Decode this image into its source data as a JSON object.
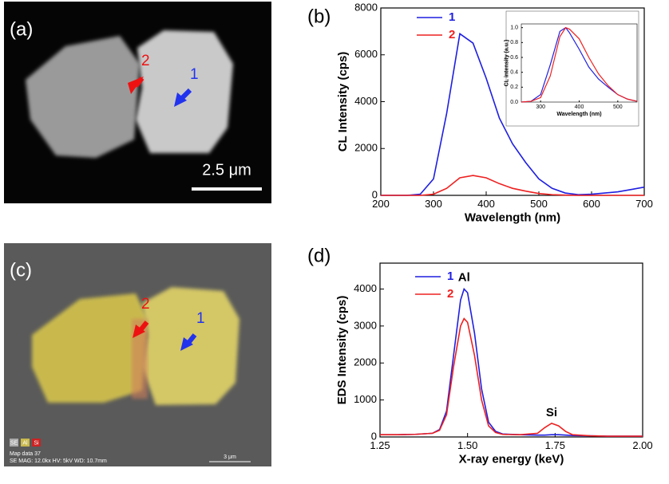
{
  "panels": [
    {
      "label": "(a)",
      "markers": [
        "2",
        "1"
      ],
      "scale_bar": "2.5 μm"
    },
    {
      "label": "(c)",
      "markers": [
        "2",
        "1"
      ],
      "badges": [
        "SE",
        "Al",
        "Si"
      ],
      "footer": [
        "Map data 37",
        "SE  MAG: 12.0kx  HV: 5kV  WD: 10.7mm"
      ],
      "scale_bar": "3 μm"
    }
  ],
  "chart_data": [
    {
      "type": "line",
      "label": "(b)",
      "xlabel": "Wavelength (nm)",
      "ylabel": "CL Intensity (cps)",
      "xlim": [
        200,
        700
      ],
      "xticks": [
        200,
        300,
        400,
        500,
        600,
        700
      ],
      "ylim": [
        0,
        8000
      ],
      "yticks": [
        0,
        2000,
        4000,
        6000,
        8000
      ],
      "x": [
        200,
        225,
        250,
        275,
        300,
        325,
        350,
        375,
        400,
        425,
        450,
        475,
        500,
        525,
        550,
        575,
        600,
        625,
        650,
        675,
        700
      ],
      "series": [
        {
          "name": "1",
          "color": "#1f1fe0",
          "values": [
            0,
            0,
            0,
            50,
            700,
            3500,
            6900,
            6500,
            5000,
            3300,
            2200,
            1400,
            700,
            300,
            100,
            30,
            50,
            100,
            150,
            250,
            350
          ]
        },
        {
          "name": "2",
          "color": "#ee2020",
          "values": [
            0,
            0,
            0,
            0,
            50,
            300,
            750,
            850,
            750,
            500,
            300,
            180,
            80,
            30,
            10,
            0,
            0,
            0,
            0,
            0,
            0
          ]
        }
      ]
    },
    {
      "type": "line",
      "xlabel": "Wavelength (nm)",
      "ylabel": "CL intensity (a.u.)",
      "xlim": [
        250,
        550
      ],
      "xticks": [
        300,
        400,
        500
      ],
      "ylim": [
        0,
        1.05
      ],
      "yticks": [
        {
          "value": 0,
          "label": "0.0"
        },
        0.2,
        0.4,
        0.6,
        0.8,
        {
          "value": 1,
          "label": "1.0"
        }
      ],
      "x": [
        250,
        275,
        300,
        325,
        350,
        365,
        375,
        400,
        425,
        450,
        475,
        500,
        525,
        550
      ],
      "series": [
        {
          "name": "1",
          "color": "#1f1fe0",
          "values": [
            0,
            0.01,
            0.1,
            0.5,
            0.95,
            1.0,
            0.93,
            0.71,
            0.47,
            0.31,
            0.2,
            0.1,
            0.04,
            0.01
          ]
        },
        {
          "name": "2",
          "color": "#ee2020",
          "values": [
            0,
            0.01,
            0.06,
            0.35,
            0.88,
            1.0,
            0.98,
            0.85,
            0.6,
            0.38,
            0.22,
            0.1,
            0.04,
            0.01
          ]
        }
      ]
    },
    {
      "type": "line",
      "label": "(d)",
      "xlabel": "X-ray energy (keV)",
      "ylabel": "EDS Intensity (cps)",
      "annotations": [
        "Al",
        "Si"
      ],
      "xlim": [
        1.25,
        2.0
      ],
      "xticks": [
        1.25,
        {
          "value": 1.5,
          "label": "1.50"
        },
        1.75,
        {
          "value": 2,
          "label": "2.00"
        }
      ],
      "ylim": [
        0,
        4700
      ],
      "yticks": [
        0,
        1000,
        2000,
        3000,
        4000
      ],
      "x": [
        1.25,
        1.3,
        1.35,
        1.4,
        1.42,
        1.44,
        1.46,
        1.48,
        1.49,
        1.5,
        1.52,
        1.54,
        1.56,
        1.58,
        1.6,
        1.65,
        1.7,
        1.72,
        1.74,
        1.76,
        1.78,
        1.8,
        1.85,
        1.9,
        1.95,
        2.0
      ],
      "series": [
        {
          "name": "1",
          "color": "#1f1fe0",
          "values": [
            60,
            60,
            70,
            100,
            200,
            700,
            2200,
            3700,
            4000,
            3900,
            2800,
            1300,
            400,
            150,
            80,
            60,
            50,
            50,
            60,
            60,
            50,
            40,
            30,
            20,
            20,
            20
          ]
        },
        {
          "name": "2",
          "color": "#ee2020",
          "values": [
            60,
            60,
            70,
            100,
            180,
            600,
            1900,
            3000,
            3200,
            3100,
            2200,
            1000,
            300,
            120,
            70,
            60,
            100,
            250,
            370,
            300,
            150,
            60,
            30,
            20,
            20,
            20
          ]
        }
      ]
    }
  ]
}
